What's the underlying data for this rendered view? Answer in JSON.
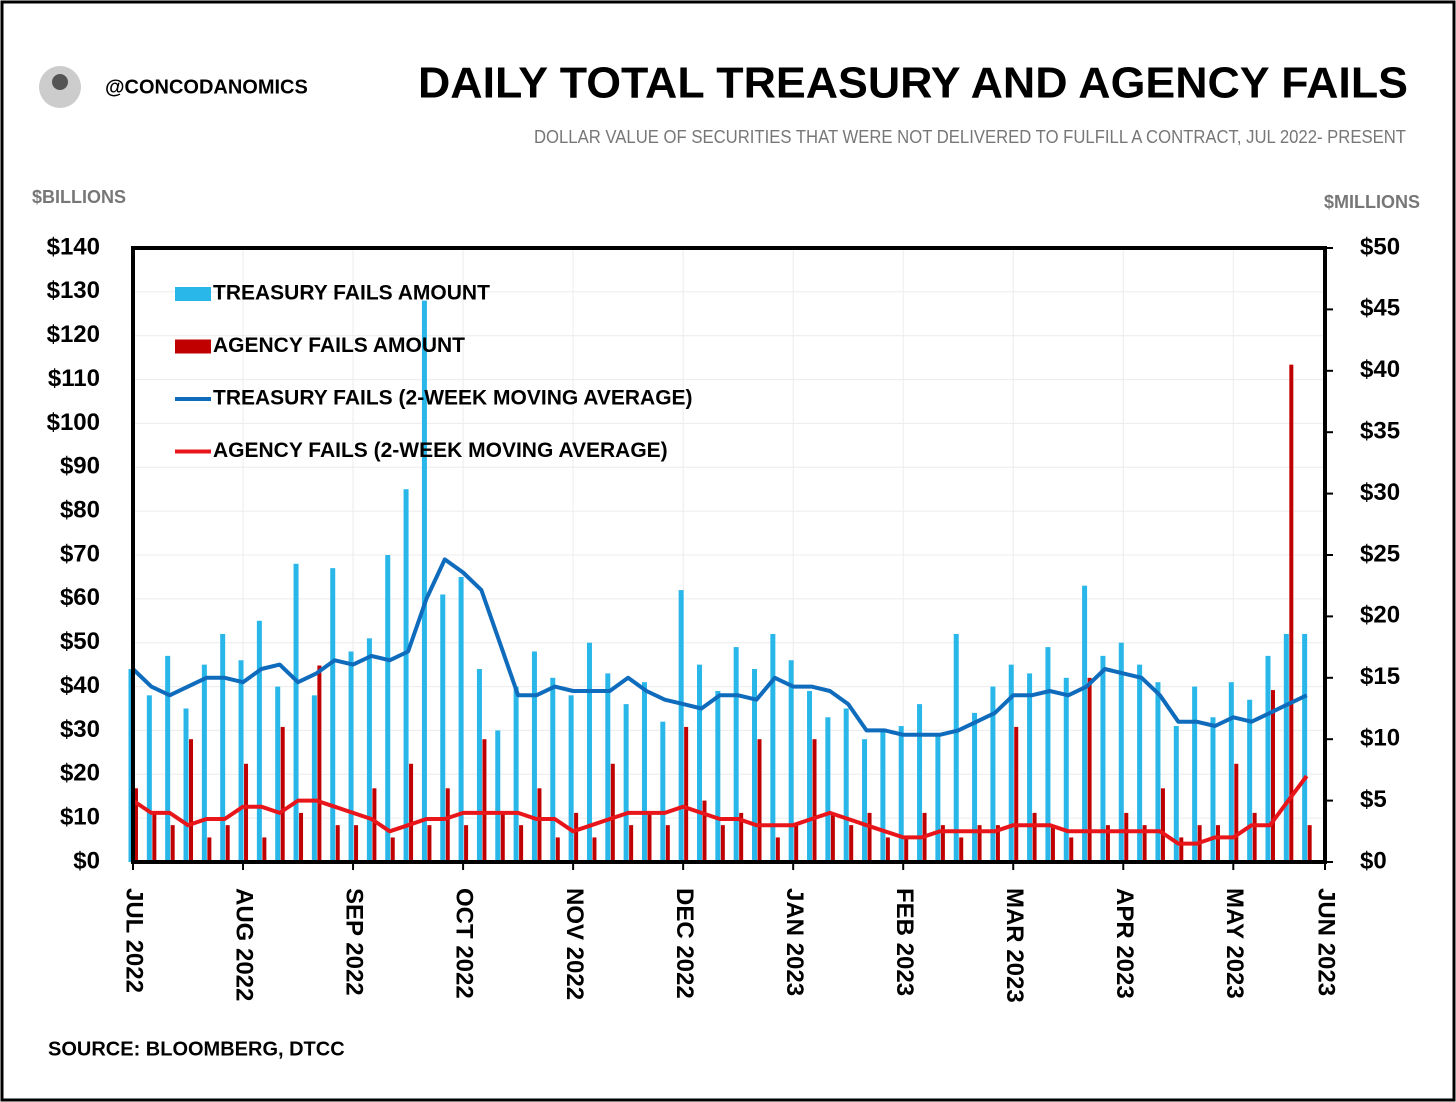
{
  "header": {
    "handle": "@CONCODANOMICS",
    "source": "SOURCE: BLOOMBERG, DTCC"
  },
  "chart_data": {
    "type": "bar",
    "title": "DAILY TOTAL TREASURY AND AGENCY FAILS",
    "subtitle": "DOLLAR VALUE OF SECURITIES THAT WERE NOT DELIVERED TO FULFILL A CONTRACT, JUL 2022- PRESENT",
    "y_label": "$BILLIONS",
    "y2_label": "$MILLIONS",
    "categories": [
      "JUL 2022",
      null,
      null,
      null,
      null,
      null,
      "AUG 2022",
      null,
      null,
      null,
      null,
      null,
      "SEP 2022",
      null,
      null,
      null,
      null,
      null,
      "OCT 2022",
      null,
      null,
      null,
      null,
      null,
      "NOV 2022",
      null,
      null,
      null,
      null,
      null,
      "DEC 2022",
      null,
      null,
      null,
      null,
      null,
      "JAN 2023",
      null,
      null,
      null,
      null,
      null,
      "FEB 2023",
      null,
      null,
      null,
      null,
      null,
      "MAR 2023",
      null,
      null,
      null,
      null,
      null,
      "APR 2023",
      null,
      null,
      null,
      null,
      null,
      "MAY 2023",
      null,
      null,
      null,
      null,
      "JUN 2023"
    ],
    "series": [
      {
        "name": "TREASURY FAILS AMOUNT",
        "type": "bar",
        "color": "#29b6e8",
        "values": [
          44,
          38,
          47,
          35,
          45,
          52,
          46,
          55,
          40,
          68,
          38,
          67,
          48,
          51,
          70,
          85,
          128,
          61,
          65,
          44,
          30,
          40,
          48,
          42,
          38,
          50,
          43,
          36,
          41,
          32,
          62,
          45,
          39,
          49,
          44,
          52,
          46,
          39,
          33,
          35,
          28,
          30,
          31,
          36,
          29,
          52,
          34,
          40,
          45,
          43,
          49,
          42,
          63,
          47,
          50,
          45,
          41,
          31,
          40,
          33,
          41,
          37,
          47,
          52,
          52,
          null
        ]
      },
      {
        "name": "AGENCY FAILS AMOUNT",
        "type": "bar",
        "axis": "y2",
        "color": "#c00000",
        "values": [
          6,
          4,
          3,
          10,
          2,
          3,
          8,
          2,
          11,
          4,
          16,
          3,
          3,
          6,
          2,
          8,
          3,
          6,
          3,
          10,
          4,
          3,
          6,
          2,
          4,
          2,
          8,
          3,
          4,
          3,
          11,
          5,
          3,
          4,
          10,
          2,
          3,
          10,
          4,
          3,
          4,
          2,
          2,
          4,
          3,
          2,
          3,
          3,
          11,
          4,
          3,
          2,
          15,
          3,
          4,
          3,
          6,
          2,
          3,
          3,
          8,
          4,
          14,
          40.5,
          3,
          null
        ]
      },
      {
        "name": "TREASURY FAILS (2-WEEK MOVING AVERAGE)",
        "type": "line",
        "color": "#0f6cbd",
        "values": [
          44,
          40,
          38,
          40,
          42,
          42,
          41,
          44,
          45,
          41,
          43,
          46,
          45,
          47,
          46,
          48,
          60,
          69,
          66,
          62,
          50,
          38,
          38,
          40,
          39,
          39,
          39,
          42,
          39,
          37,
          36,
          35,
          38,
          38,
          37,
          42,
          40,
          40,
          39,
          36,
          30,
          30,
          29,
          29,
          29,
          30,
          32,
          34,
          38,
          38,
          39,
          38,
          40,
          44,
          43,
          42,
          38,
          32,
          32,
          31,
          33,
          32,
          34,
          36,
          38,
          null
        ]
      },
      {
        "name": "AGENCY FAILS (2-WEEK MOVING AVERAGE)",
        "type": "line",
        "axis": "y2",
        "color": "#e8161b",
        "values": [
          5,
          4,
          4,
          3,
          3.5,
          3.5,
          4.5,
          4.5,
          4,
          5,
          5,
          4.5,
          4,
          3.5,
          2.5,
          3,
          3.5,
          3.5,
          4,
          4,
          4,
          4,
          3.5,
          3.5,
          2.5,
          3,
          3.5,
          4,
          4,
          4,
          4.5,
          4,
          3.5,
          3.5,
          3,
          3,
          3,
          3.5,
          4,
          3.5,
          3,
          2.5,
          2,
          2,
          2.5,
          2.5,
          2.5,
          2.5,
          3,
          3,
          3,
          2.5,
          2.5,
          2.5,
          2.5,
          2.5,
          2.5,
          1.5,
          1.5,
          2,
          2,
          3,
          3,
          5,
          7,
          null
        ]
      }
    ],
    "ylim": [
      0,
      140
    ],
    "yticks": [
      {
        "value": 0,
        "label": "$0"
      },
      {
        "value": 10,
        "label": "$10"
      },
      {
        "value": 20,
        "label": "$20"
      },
      {
        "value": 30,
        "label": "$30"
      },
      {
        "value": 40,
        "label": "$40"
      },
      {
        "value": 50,
        "label": "$50"
      },
      {
        "value": 60,
        "label": "$60"
      },
      {
        "value": 70,
        "label": "$70"
      },
      {
        "value": 80,
        "label": "$80"
      },
      {
        "value": 90,
        "label": "$90"
      },
      {
        "value": 100,
        "label": "$100"
      },
      {
        "value": 110,
        "label": "$110"
      },
      {
        "value": 120,
        "label": "$120"
      },
      {
        "value": 130,
        "label": "$130"
      },
      {
        "value": 140,
        "label": "$140"
      }
    ],
    "y2lim": [
      0,
      50
    ],
    "y2ticks": [
      {
        "value": 0,
        "label": "$0"
      },
      {
        "value": 5,
        "label": "$5"
      },
      {
        "value": 10,
        "label": "$10"
      },
      {
        "value": 15,
        "label": "$15"
      },
      {
        "value": 20,
        "label": "$20"
      },
      {
        "value": 25,
        "label": "$25"
      },
      {
        "value": 30,
        "label": "$30"
      },
      {
        "value": 35,
        "label": "$35"
      },
      {
        "value": 40,
        "label": "$40"
      },
      {
        "value": 45,
        "label": "$45"
      },
      {
        "value": 50,
        "label": "$50"
      }
    ],
    "grid": true,
    "legend": "upper left"
  }
}
